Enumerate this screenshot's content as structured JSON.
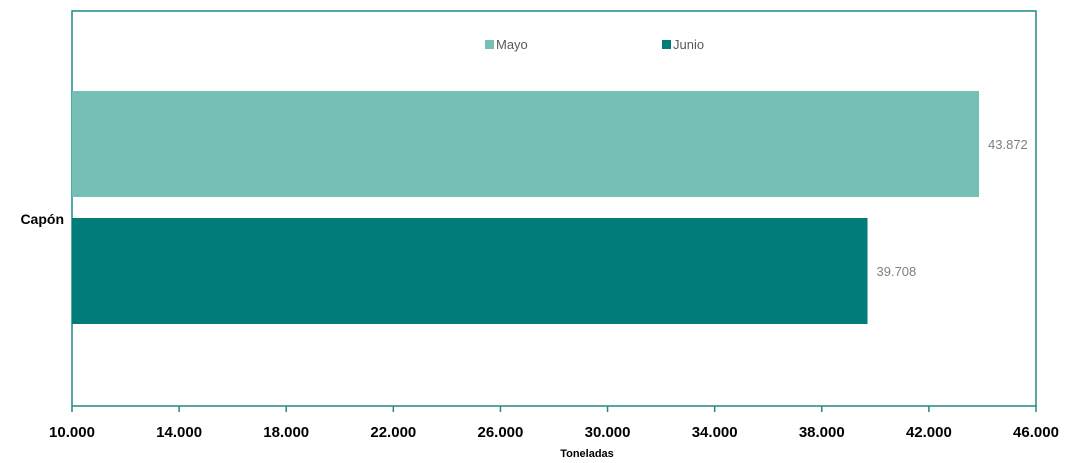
{
  "chart_data": {
    "type": "bar",
    "orientation": "horizontal",
    "categories": [
      "Capón"
    ],
    "series": [
      {
        "name": "Mayo",
        "values": [
          43872
        ],
        "label": "43.872",
        "color": "#76BFB4"
      },
      {
        "name": "Junio",
        "values": [
          39708
        ],
        "label": "39.708",
        "color": "#007D78"
      }
    ],
    "xlabel": "Toneladas",
    "ylabel": "",
    "xlim": [
      10000,
      46000
    ],
    "xticks": [
      10000,
      14000,
      18000,
      22000,
      26000,
      30000,
      34000,
      38000,
      42000,
      46000
    ],
    "xtick_labels": [
      "10.000",
      "14.000",
      "18.000",
      "22.000",
      "26.000",
      "30.000",
      "34.000",
      "38.000",
      "42.000",
      "46.000"
    ],
    "legend_position": "top-center",
    "grid": false,
    "axis_color": "#1F8A85"
  }
}
